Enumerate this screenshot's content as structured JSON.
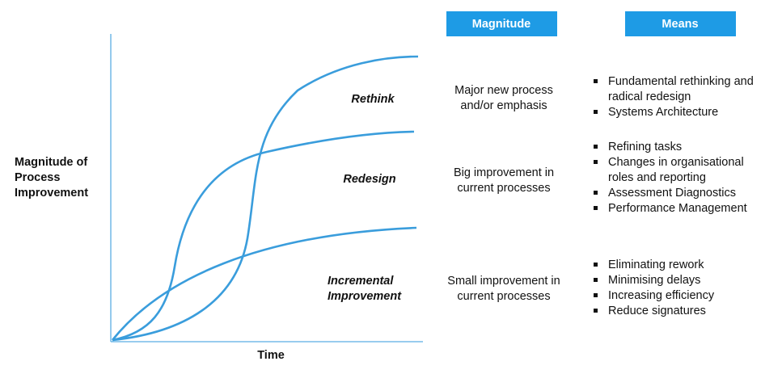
{
  "axes": {
    "y_label": [
      "Magnitude of",
      "Process",
      "Improvement"
    ],
    "x_label": "Time"
  },
  "curves": [
    {
      "label": [
        "Rethink"
      ]
    },
    {
      "label": [
        "Redesign"
      ]
    },
    {
      "label": [
        "Incremental",
        "Improvement"
      ]
    }
  ],
  "headers": {
    "magnitude": "Magnitude",
    "means": "Means"
  },
  "magnitude": [
    [
      "Major new process",
      "and/or emphasis"
    ],
    [
      "Big improvement in",
      "current processes"
    ],
    [
      "Small improvement in",
      "current processes"
    ]
  ],
  "means": [
    [
      [
        "Fundamental rethinking and",
        "radical redesign"
      ],
      [
        "Systems Architecture"
      ]
    ],
    [
      [
        "Refining tasks"
      ],
      [
        "Changes in organisational",
        "roles and reporting"
      ],
      [
        "Assessment Diagnostics"
      ],
      [
        "Performance Management"
      ]
    ],
    [
      [
        "Eliminating rework"
      ],
      [
        "Minimising delays"
      ],
      [
        "Increasing efficiency"
      ],
      [
        "Reduce signatures"
      ]
    ]
  ]
}
